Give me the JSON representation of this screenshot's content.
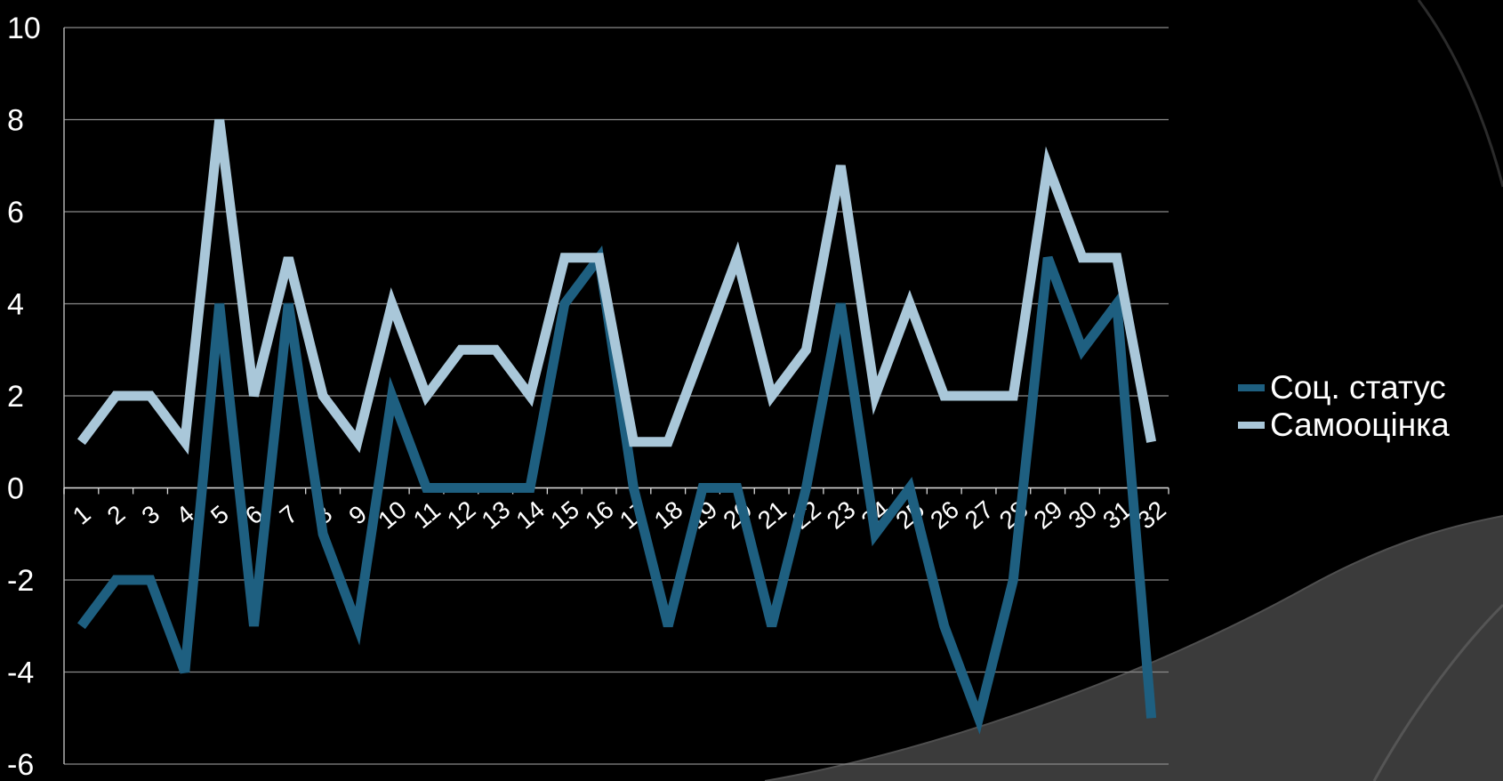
{
  "chart_data": {
    "type": "line",
    "categories": [
      "1",
      "2",
      "3",
      "4",
      "5",
      "6",
      "7",
      "8",
      "9",
      "10",
      "11",
      "12",
      "13",
      "14",
      "15",
      "16",
      "17",
      "18",
      "19",
      "20",
      "21",
      "22",
      "23",
      "24",
      "25",
      "26",
      "27",
      "28",
      "29",
      "30",
      "31",
      "32"
    ],
    "series": [
      {
        "name": "Соц. статус",
        "color": "#1e5f80",
        "values": [
          -3,
          -2,
          -2,
          -4,
          4,
          -3,
          4,
          -1,
          -3,
          2,
          0,
          0,
          0,
          0,
          4,
          5,
          0,
          -3,
          0,
          0,
          -3,
          0,
          4,
          -1,
          0,
          -3,
          -5,
          -2,
          5,
          3,
          4,
          -5
        ]
      },
      {
        "name": "Самооцінка",
        "color": "#a9c7d9",
        "values": [
          1,
          2,
          2,
          1,
          8,
          2,
          5,
          2,
          1,
          4,
          2,
          3,
          3,
          2,
          5,
          5,
          1,
          1,
          3,
          5,
          2,
          3,
          7,
          2,
          4,
          2,
          2,
          2,
          7,
          5,
          5,
          1
        ]
      }
    ],
    "ylim": [
      -6,
      10
    ],
    "yticks": [
      "-6",
      "-4",
      "-2",
      "0",
      "2",
      "4",
      "6",
      "8",
      "10"
    ],
    "grid": true,
    "legend_position": "right",
    "title": "",
    "xlabel": "",
    "ylabel": ""
  }
}
